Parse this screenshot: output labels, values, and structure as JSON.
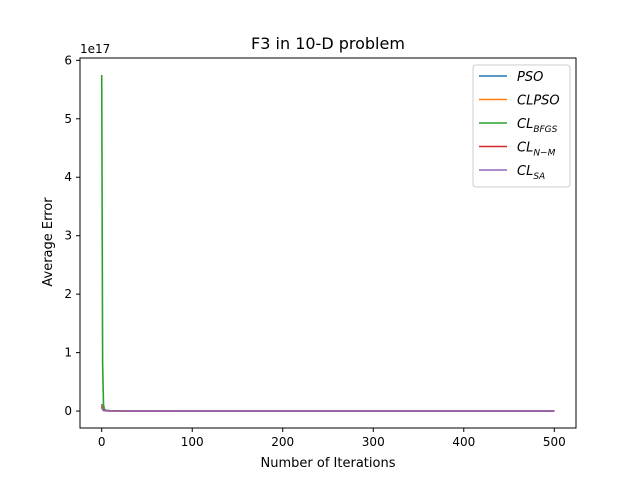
{
  "chart_data": {
    "type": "line",
    "title": "F3 in 10-D problem",
    "xlabel": "Number of Iterations",
    "ylabel": "Average Error",
    "y_offset_label": "1e17",
    "xlim": [
      -24,
      524
    ],
    "ylim": [
      -0.29,
      6.04
    ],
    "y_unit_scale": 1e+17,
    "x_ticks": [
      0,
      100,
      200,
      300,
      400,
      500
    ],
    "x_tick_labels": [
      "0",
      "100",
      "200",
      "300",
      "400",
      "500"
    ],
    "y_ticks": [
      0,
      1,
      2,
      3,
      4,
      5,
      6
    ],
    "y_tick_labels": [
      "0",
      "1",
      "2",
      "3",
      "4",
      "5",
      "6"
    ],
    "grid": false,
    "legend_position": "top-right",
    "series": [
      {
        "label_main": "PSO",
        "label_sub": "",
        "color": "#1f77b4",
        "x": [
          0,
          1,
          2,
          3,
          5,
          10,
          20,
          50,
          100,
          200,
          300,
          400,
          500
        ],
        "y": [
          0.12,
          0.05,
          0.03,
          0.02,
          0.01,
          0.005,
          0.002,
          0.001,
          0.0005,
          0.0002,
          0.0001,
          0.0001,
          0.0001
        ]
      },
      {
        "label_main": "CLPSO",
        "label_sub": "",
        "color": "#ff7f0e",
        "x": [
          0,
          1,
          2,
          3,
          5,
          10,
          20,
          50,
          100,
          200,
          300,
          400,
          500
        ],
        "y": [
          0.1,
          0.04,
          0.02,
          0.01,
          0.005,
          0.003,
          0.001,
          0.0005,
          0.0003,
          0.0001,
          0.0001,
          0.0001,
          0.0001
        ]
      },
      {
        "label_main": "CL",
        "label_sub": "BFGS",
        "color": "#2ca02c",
        "x": [
          0,
          1,
          2,
          3,
          4,
          5,
          10,
          20,
          50,
          100,
          200,
          300,
          400,
          500
        ],
        "y": [
          5.75,
          0.8,
          0.1,
          0.03,
          0.015,
          0.01,
          0.005,
          0.002,
          0.001,
          0.0005,
          0.0002,
          0.0001,
          0.0001,
          0.0001
        ]
      },
      {
        "label_main": "CL",
        "label_sub": "N−M",
        "color": "#d62728",
        "x": [
          0,
          1,
          2,
          3,
          5,
          10,
          20,
          50,
          100,
          200,
          300,
          400,
          500
        ],
        "y": [
          0.08,
          0.03,
          0.015,
          0.008,
          0.004,
          0.002,
          0.001,
          0.0005,
          0.0003,
          0.0001,
          0.0001,
          0.0001,
          0.0001
        ]
      },
      {
        "label_main": "CL",
        "label_sub": "SA",
        "color": "#9467bd",
        "x": [
          0,
          1,
          2,
          3,
          5,
          10,
          20,
          50,
          100,
          200,
          300,
          400,
          500
        ],
        "y": [
          0.06,
          0.02,
          0.01,
          0.005,
          0.003,
          0.001,
          0.0008,
          0.0004,
          0.0002,
          0.0001,
          0.0001,
          0.0001,
          0.0001
        ]
      }
    ]
  }
}
